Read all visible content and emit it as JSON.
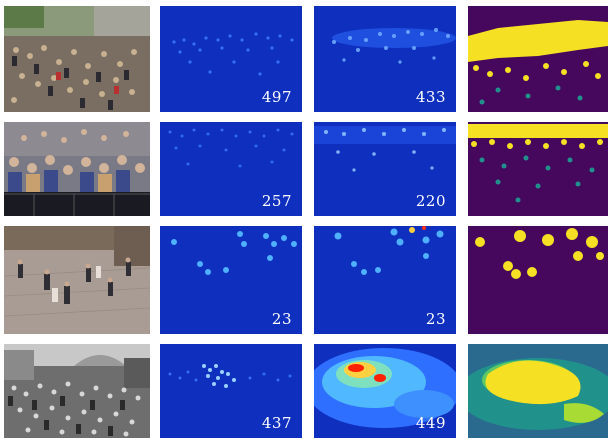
{
  "rows": [
    {
      "counts": {
        "ground_truth": "497",
        "predicted": "433"
      }
    },
    {
      "counts": {
        "ground_truth": "257",
        "predicted": "220"
      }
    },
    {
      "counts": {
        "ground_truth": "23",
        "predicted": "23"
      }
    },
    {
      "counts": {
        "ground_truth": "437",
        "predicted": "449"
      }
    }
  ],
  "colors": {
    "density_background": "#1030c0",
    "density_hot": "#ff2000",
    "mask_background": "#46085c",
    "mask_fill": "#f5e024",
    "mask_mid": "#21918c"
  },
  "column_types": [
    "crowd-photo",
    "ground-truth-density-map",
    "predicted-density-map",
    "binary-mask"
  ]
}
